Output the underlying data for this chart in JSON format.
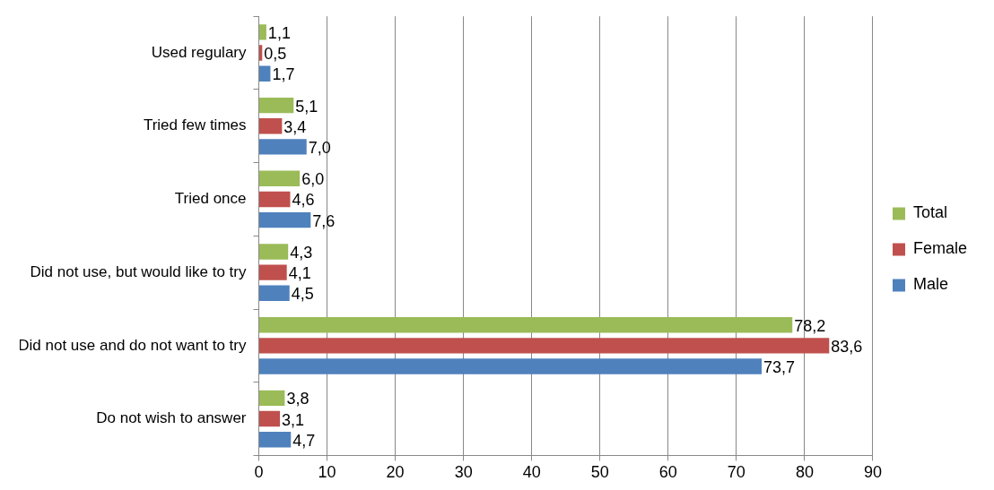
{
  "chart_data": {
    "type": "bar",
    "orientation": "horizontal",
    "categories": [
      "Used regulary",
      "Tried few times",
      "Tried once",
      "Did not use, but would like to try",
      "Did not use and do not want to try",
      "Do not wish to answer"
    ],
    "series": [
      {
        "name": "Total",
        "color": "#9bbb59",
        "values": [
          1.1,
          5.1,
          6.0,
          4.3,
          78.2,
          3.8
        ],
        "value_labels": [
          "1,1",
          "5,1",
          "6,0",
          "4,3",
          "78,2",
          "3,8"
        ]
      },
      {
        "name": "Female",
        "color": "#c0504d",
        "values": [
          0.5,
          3.4,
          4.6,
          4.1,
          83.6,
          3.1
        ],
        "value_labels": [
          "0,5",
          "3,4",
          "4,6",
          "4,1",
          "83,6",
          "3,1"
        ]
      },
      {
        "name": "Male",
        "color": "#4f81bd",
        "values": [
          1.7,
          7.0,
          7.6,
          4.5,
          73.7,
          4.7
        ],
        "value_labels": [
          "1,7",
          "7,0",
          "7,6",
          "4,5",
          "73,7",
          "4,7"
        ]
      }
    ],
    "xlim": [
      0,
      90
    ],
    "xticks": [
      0,
      10,
      20,
      30,
      40,
      50,
      60,
      70,
      80,
      90
    ],
    "grid": "x",
    "legend": "right"
  }
}
